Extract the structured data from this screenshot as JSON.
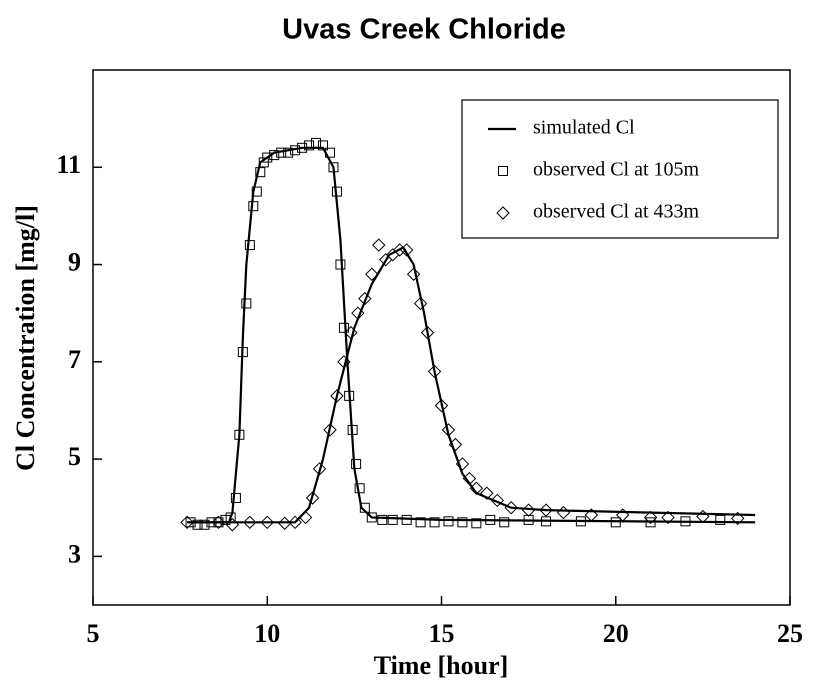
{
  "chart_data": {
    "type": "line",
    "title": "Uvas Creek Chloride",
    "x_label": "Time [hour]",
    "y_label": "Cl Concentration [mg/l]",
    "xlim": [
      5,
      25
    ],
    "xticks": [
      5,
      10,
      15,
      20,
      25
    ],
    "ylim": [
      2,
      13
    ],
    "yticks": [
      3,
      5,
      7,
      9,
      11
    ],
    "legend": "upper right",
    "series": [
      {
        "name": "simulated Cl",
        "style": "line",
        "color": "#000000",
        "x": [
          7.7,
          8.9,
          9.0,
          9.2,
          9.3,
          9.4,
          9.6,
          9.8,
          10.2,
          11.0,
          11.6,
          11.9,
          12.1,
          12.3,
          12.5,
          12.7,
          13.0,
          15.0,
          24.0
        ],
        "values": [
          3.7,
          3.7,
          3.9,
          5.5,
          7.5,
          9.0,
          10.5,
          11.1,
          11.3,
          11.4,
          11.4,
          11.0,
          9.5,
          7.0,
          4.8,
          4.0,
          3.8,
          3.75,
          3.7
        ]
      },
      {
        "style": "line",
        "color": "#000000",
        "x": [
          7.7,
          10.8,
          11.2,
          11.6,
          12.0,
          12.5,
          13.0,
          13.5,
          13.9,
          14.2,
          14.5,
          14.8,
          15.2,
          15.6,
          16.0,
          17.0,
          18.0,
          24.0
        ],
        "values": [
          3.7,
          3.7,
          4.0,
          5.0,
          6.3,
          7.7,
          8.6,
          9.2,
          9.35,
          9.0,
          8.0,
          6.8,
          5.5,
          4.7,
          4.3,
          4.0,
          3.95,
          3.85
        ]
      },
      {
        "name": "observed Cl at 105m",
        "style": "square",
        "color": "#000000",
        "x": [
          7.8,
          8.0,
          8.2,
          8.4,
          8.6,
          8.8,
          8.95,
          9.1,
          9.2,
          9.3,
          9.4,
          9.5,
          9.6,
          9.7,
          9.8,
          9.9,
          10.0,
          10.2,
          10.4,
          10.6,
          10.8,
          11.0,
          11.2,
          11.4,
          11.6,
          11.8,
          11.9,
          12.0,
          12.1,
          12.2,
          12.35,
          12.45,
          12.55,
          12.65,
          12.8,
          13.0,
          13.3,
          13.6,
          14.0,
          14.4,
          14.8,
          15.2,
          15.6,
          16.0,
          16.4,
          16.8,
          17.5,
          18.0,
          19.0,
          20.0,
          21.0,
          22.0,
          23.0
        ],
        "values": [
          3.7,
          3.65,
          3.65,
          3.7,
          3.7,
          3.75,
          3.8,
          4.2,
          5.5,
          7.2,
          8.2,
          9.4,
          10.2,
          10.5,
          10.9,
          11.1,
          11.2,
          11.25,
          11.3,
          11.3,
          11.35,
          11.4,
          11.45,
          11.5,
          11.45,
          11.3,
          11.0,
          10.5,
          9.0,
          7.7,
          6.3,
          5.6,
          4.9,
          4.4,
          4.0,
          3.8,
          3.75,
          3.75,
          3.75,
          3.7,
          3.7,
          3.72,
          3.7,
          3.68,
          3.75,
          3.7,
          3.75,
          3.72,
          3.72,
          3.7,
          3.7,
          3.72,
          3.75
        ]
      },
      {
        "name": "observed Cl at 433m",
        "style": "diamond",
        "color": "#000000",
        "x": [
          7.7,
          8.6,
          9.0,
          9.5,
          10.0,
          10.5,
          10.8,
          11.1,
          11.3,
          11.5,
          11.8,
          12.0,
          12.2,
          12.4,
          12.6,
          12.8,
          13.0,
          13.2,
          13.4,
          13.6,
          13.8,
          14.0,
          14.2,
          14.4,
          14.6,
          14.8,
          15.0,
          15.2,
          15.4,
          15.6,
          15.8,
          16.0,
          16.3,
          16.6,
          17.0,
          17.5,
          18.0,
          18.5,
          19.3,
          20.2,
          21.0,
          21.5,
          22.5,
          23.5
        ],
        "values": [
          3.7,
          3.7,
          3.65,
          3.7,
          3.7,
          3.68,
          3.7,
          3.8,
          4.2,
          4.8,
          5.6,
          6.3,
          7.0,
          7.6,
          8.0,
          8.3,
          8.8,
          9.4,
          9.1,
          9.2,
          9.3,
          9.3,
          8.8,
          8.2,
          7.6,
          6.8,
          6.1,
          5.6,
          5.3,
          4.9,
          4.6,
          4.4,
          4.3,
          4.15,
          4.0,
          3.95,
          3.95,
          3.9,
          3.85,
          3.85,
          3.8,
          3.8,
          3.82,
          3.78
        ]
      }
    ]
  }
}
